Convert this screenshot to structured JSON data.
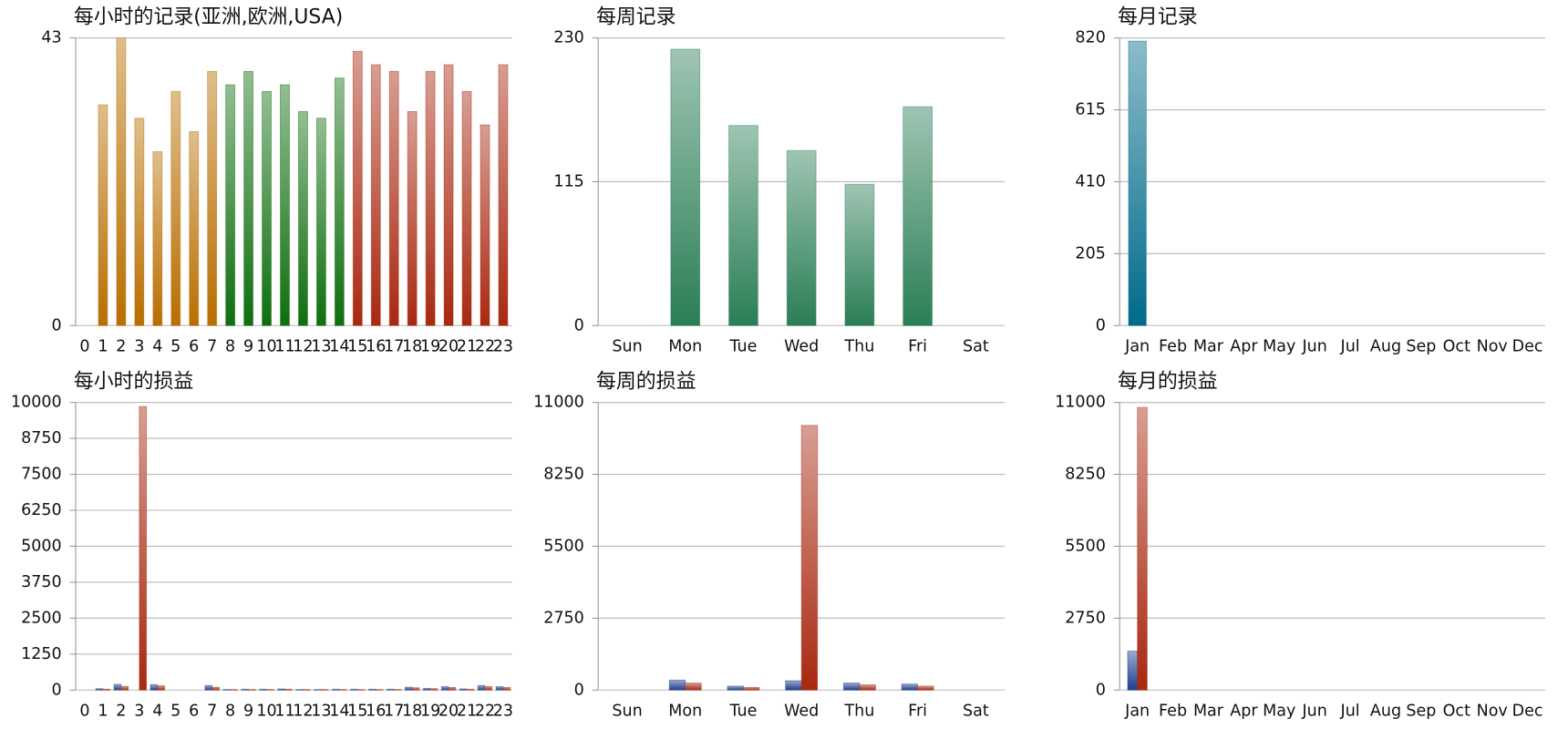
{
  "chart_data": [
    {
      "type": "bar",
      "title": "每小时的记录(亚洲,欧洲,USA)",
      "categories": [
        "0",
        "1",
        "2",
        "3",
        "4",
        "5",
        "6",
        "7",
        "8",
        "9",
        "10",
        "11",
        "12",
        "13",
        "14",
        "15",
        "16",
        "17",
        "18",
        "19",
        "20",
        "21",
        "22",
        "23"
      ],
      "values": [
        0,
        33,
        43,
        31,
        26,
        35,
        29,
        38,
        36,
        38,
        35,
        36,
        32,
        31,
        37,
        41,
        39,
        38,
        32,
        38,
        39,
        35,
        30,
        39
      ],
      "colors": [
        "#b86e00",
        "#b86e00",
        "#b86e00",
        "#b86e00",
        "#b86e00",
        "#b86e00",
        "#b86e00",
        "#b86e00",
        "#0e6e0e",
        "#0e6e0e",
        "#0e6e0e",
        "#0e6e0e",
        "#0e6e0e",
        "#0e6e0e",
        "#0e6e0e",
        "#a82810",
        "#a82810",
        "#a82810",
        "#a82810",
        "#a82810",
        "#a82810",
        "#a82810",
        "#a82810",
        "#a82810"
      ],
      "ylim": [
        0,
        43
      ],
      "yticks": [
        0,
        43
      ],
      "grid": true
    },
    {
      "type": "bar",
      "title": "每周记录",
      "categories": [
        "Sun",
        "Mon",
        "Tue",
        "Wed",
        "Thu",
        "Fri",
        "Sat"
      ],
      "values": [
        0,
        221,
        160,
        140,
        113,
        175,
        0
      ],
      "color": "#2a7e55",
      "ylim": [
        0,
        230
      ],
      "yticks": [
        0,
        115,
        230
      ],
      "grid": true
    },
    {
      "type": "bar",
      "title": "每月记录",
      "categories": [
        "Jan",
        "Feb",
        "Mar",
        "Apr",
        "May",
        "Jun",
        "Jul",
        "Aug",
        "Sep",
        "Oct",
        "Nov",
        "Dec"
      ],
      "values": [
        811,
        0,
        0,
        0,
        0,
        0,
        0,
        0,
        0,
        0,
        0,
        0
      ],
      "color": "#006a8a",
      "ylim": [
        0,
        820
      ],
      "yticks": [
        0,
        205,
        410,
        615,
        820
      ],
      "grid": true
    },
    {
      "type": "bar",
      "title": "每小时的损益",
      "categories": [
        "0",
        "1",
        "2",
        "3",
        "4",
        "5",
        "6",
        "7",
        "8",
        "9",
        "10",
        "11",
        "12",
        "13",
        "14",
        "15",
        "16",
        "17",
        "18",
        "19",
        "20",
        "21",
        "22",
        "23"
      ],
      "series": [
        {
          "color": "#1f3f8f",
          "values": [
            0,
            50,
            200,
            0,
            190,
            0,
            0,
            160,
            20,
            30,
            30,
            40,
            20,
            20,
            30,
            30,
            30,
            30,
            100,
            60,
            120,
            40,
            160,
            120
          ]
        },
        {
          "color": "#a82810",
          "values": [
            0,
            30,
            130,
            9860,
            150,
            0,
            0,
            100,
            20,
            20,
            20,
            30,
            20,
            20,
            20,
            20,
            20,
            20,
            80,
            50,
            90,
            30,
            120,
            90
          ]
        }
      ],
      "ylim": [
        0,
        10000
      ],
      "yticks": [
        0,
        1250,
        2500,
        3750,
        5000,
        6250,
        7500,
        8750,
        10000
      ],
      "grid": true
    },
    {
      "type": "bar",
      "title": "每周的损益",
      "categories": [
        "Sun",
        "Mon",
        "Tue",
        "Wed",
        "Thu",
        "Fri",
        "Sat"
      ],
      "series": [
        {
          "color": "#1f3f8f",
          "values": [
            0,
            382,
            150,
            357,
            270,
            230,
            0
          ]
        },
        {
          "color": "#a82810",
          "values": [
            0,
            267,
            100,
            10122,
            200,
            150,
            0
          ]
        }
      ],
      "ylim": [
        0,
        11000
      ],
      "yticks": [
        0,
        2750,
        5500,
        8250,
        11000
      ],
      "grid": true
    },
    {
      "type": "bar",
      "title": "每月的损益",
      "categories": [
        "Jan",
        "Feb",
        "Mar",
        "Apr",
        "May",
        "Jun",
        "Jul",
        "Aug",
        "Sep",
        "Oct",
        "Nov",
        "Dec"
      ],
      "series": [
        {
          "color": "#1f3f8f",
          "values": [
            1490,
            0,
            0,
            0,
            0,
            0,
            0,
            0,
            0,
            0,
            0,
            0
          ]
        },
        {
          "color": "#a82810",
          "values": [
            10809,
            0,
            0,
            0,
            0,
            0,
            0,
            0,
            0,
            0,
            0,
            0
          ]
        }
      ],
      "ylim": [
        0,
        11000
      ],
      "yticks": [
        0,
        2750,
        5500,
        8250,
        11000
      ],
      "grid": true
    }
  ]
}
